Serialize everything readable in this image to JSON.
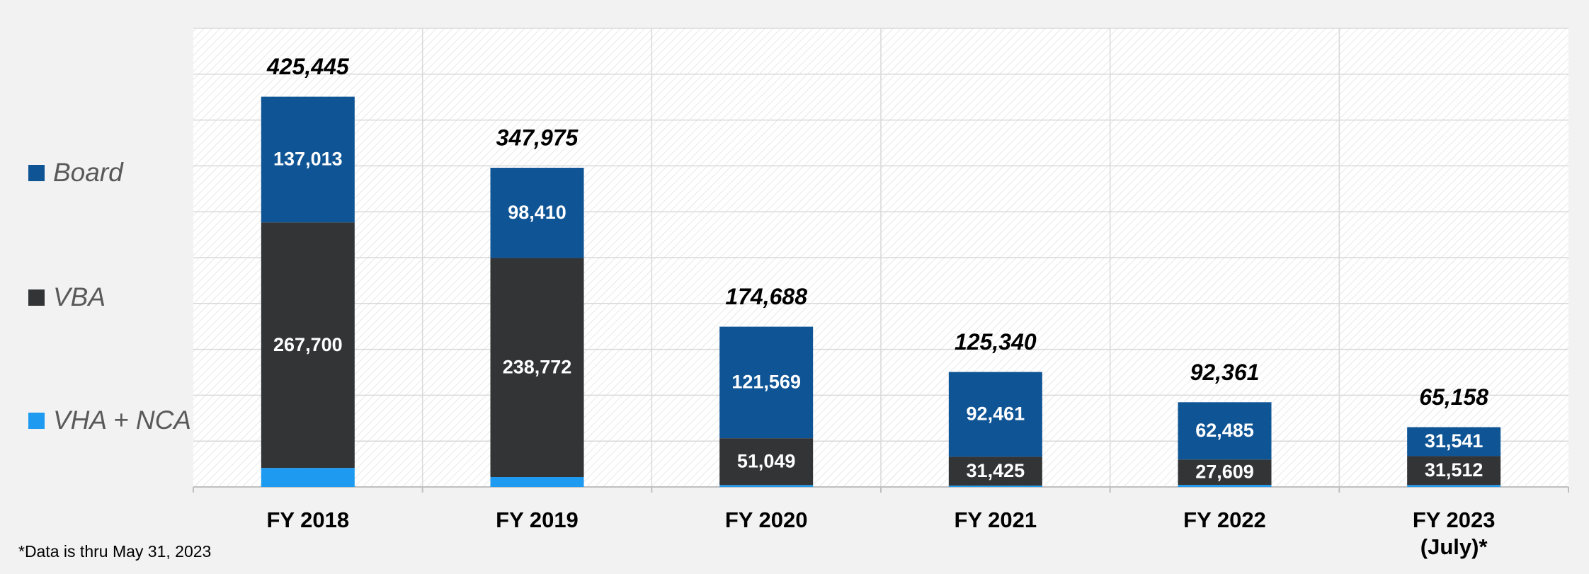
{
  "chart_data": {
    "type": "stacked_bar",
    "categories": [
      "FY 2018",
      "FY 2019",
      "FY 2020",
      "FY 2021",
      "FY 2022",
      "FY 2023 (July)*"
    ],
    "series": [
      {
        "name": "VHA + NCA",
        "color": "#1e9bf0",
        "values": [
          20732,
          10793,
          2070,
          1454,
          2267,
          2105
        ]
      },
      {
        "name": "VBA",
        "color": "#333436",
        "values": [
          267700,
          238772,
          51049,
          31425,
          27609,
          31512
        ],
        "value_labels": [
          "267,700",
          "238,772",
          "51,049",
          "31,425",
          "27,609",
          "31,512"
        ]
      },
      {
        "name": "Board",
        "color": "#0f5494",
        "values": [
          137013,
          98410,
          121569,
          92461,
          62485,
          31541
        ],
        "value_labels": [
          "137,013",
          "98,410",
          "121,569",
          "92,461",
          "62,485",
          "31,541"
        ]
      }
    ],
    "totals": [
      425445,
      347975,
      174688,
      125340,
      92361,
      65158
    ],
    "total_labels": [
      "425,445",
      "347,975",
      "174,688",
      "125,340",
      "92,361",
      "65,158"
    ],
    "ylim": [
      0,
      500000
    ],
    "yticks": [
      0,
      50000,
      100000,
      150000,
      200000,
      250000,
      300000,
      350000,
      400000,
      450000,
      500000
    ],
    "grid": true,
    "legend": "left",
    "footnote": "*Data is thru May 31, 2023"
  }
}
